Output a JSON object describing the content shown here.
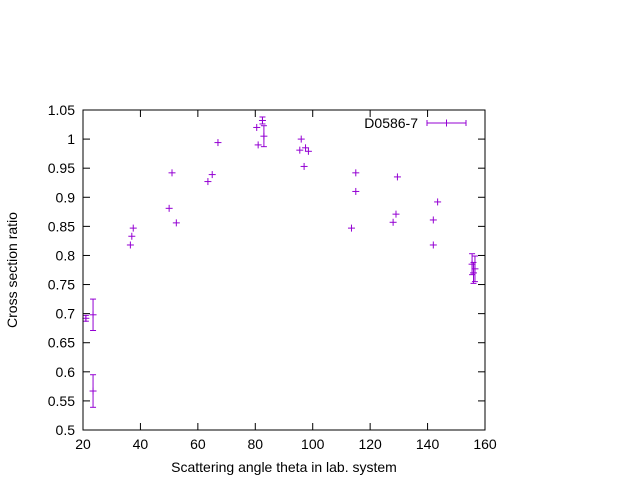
{
  "chart_data": {
    "type": "scatter",
    "title": "",
    "xlabel": "Scattering angle theta in lab. system",
    "ylabel": "Cross section ratio",
    "xlim": [
      20,
      160
    ],
    "ylim": [
      0.5,
      1.05
    ],
    "x_ticks": [
      20,
      40,
      60,
      80,
      100,
      120,
      140,
      160
    ],
    "y_ticks": [
      0.5,
      0.55,
      0.6,
      0.65,
      0.7,
      0.75,
      0.8,
      0.85,
      0.9,
      0.95,
      1,
      1.05
    ],
    "x_tick_labels": [
      "20",
      "40",
      "60",
      "80",
      "100",
      "120",
      "140",
      "160"
    ],
    "y_tick_labels": [
      "0.5",
      "0.55",
      "0.6",
      "0.65",
      "0.7",
      "0.75",
      "0.8",
      "0.85",
      "0.9",
      "0.95",
      "1",
      "1.05"
    ],
    "grid": false,
    "legend_position": "top-right",
    "colors": {
      "series": "#9400d3",
      "axes": "#000000"
    },
    "series": [
      {
        "name": "D0586-7",
        "points": [
          {
            "x": 21.0,
            "y": 0.692,
            "yerr": 0.005
          },
          {
            "x": 23.5,
            "y": 0.698,
            "yerr": 0.027
          },
          {
            "x": 23.5,
            "y": 0.567,
            "yerr": 0.028
          },
          {
            "x": 36.5,
            "y": 0.818,
            "yerr": 0.0
          },
          {
            "x": 37.0,
            "y": 0.833,
            "yerr": 0.0
          },
          {
            "x": 37.5,
            "y": 0.847,
            "yerr": 0.0
          },
          {
            "x": 50.0,
            "y": 0.881,
            "yerr": 0.0
          },
          {
            "x": 51.0,
            "y": 0.942,
            "yerr": 0.0
          },
          {
            "x": 52.5,
            "y": 0.856,
            "yerr": 0.0
          },
          {
            "x": 63.5,
            "y": 0.927,
            "yerr": 0.0
          },
          {
            "x": 65.0,
            "y": 0.939,
            "yerr": 0.0
          },
          {
            "x": 67.0,
            "y": 0.994,
            "yerr": 0.0
          },
          {
            "x": 80.5,
            "y": 1.02,
            "yerr": 0.0
          },
          {
            "x": 81.0,
            "y": 0.99,
            "yerr": 0.0
          },
          {
            "x": 82.5,
            "y": 1.032,
            "yerr": 0.006
          },
          {
            "x": 83.0,
            "y": 1.005,
            "yerr": 0.018
          },
          {
            "x": 95.5,
            "y": 0.981,
            "yerr": 0.0
          },
          {
            "x": 96.0,
            "y": 1.0,
            "yerr": 0.0
          },
          {
            "x": 97.0,
            "y": 0.953,
            "yerr": 0.0
          },
          {
            "x": 97.5,
            "y": 0.985,
            "yerr": 0.0
          },
          {
            "x": 98.5,
            "y": 0.979,
            "yerr": 0.0
          },
          {
            "x": 113.5,
            "y": 0.847,
            "yerr": 0.0
          },
          {
            "x": 115.0,
            "y": 0.942,
            "yerr": 0.0
          },
          {
            "x": 115.0,
            "y": 0.91,
            "yerr": 0.0
          },
          {
            "x": 128.0,
            "y": 0.857,
            "yerr": 0.0
          },
          {
            "x": 129.0,
            "y": 0.871,
            "yerr": 0.0
          },
          {
            "x": 129.5,
            "y": 0.935,
            "yerr": 0.0
          },
          {
            "x": 142.0,
            "y": 0.818,
            "yerr": 0.0
          },
          {
            "x": 142.0,
            "y": 0.861,
            "yerr": 0.0
          },
          {
            "x": 143.5,
            "y": 0.892,
            "yerr": 0.0
          },
          {
            "x": 155.5,
            "y": 0.785,
            "yerr": 0.018
          },
          {
            "x": 156.0,
            "y": 0.77,
            "yerr": 0.018
          },
          {
            "x": 156.5,
            "y": 0.777,
            "yerr": 0.022
          }
        ]
      }
    ]
  }
}
